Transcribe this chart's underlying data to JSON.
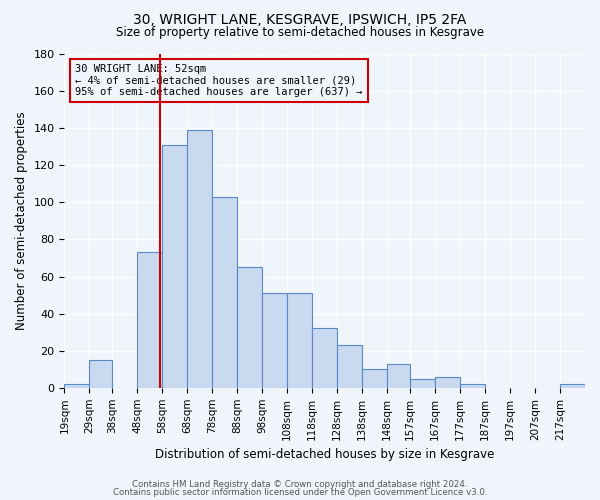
{
  "title": "30, WRIGHT LANE, KESGRAVE, IPSWICH, IP5 2FA",
  "subtitle": "Size of property relative to semi-detached houses in Kesgrave",
  "xlabel": "Distribution of semi-detached houses by size in Kesgrave",
  "ylabel": "Number of semi-detached properties",
  "bin_labels": [
    "19sqm",
    "29sqm",
    "38sqm",
    "48sqm",
    "58sqm",
    "68sqm",
    "78sqm",
    "88sqm",
    "98sqm",
    "108sqm",
    "118sqm",
    "128sqm",
    "138sqm",
    "148sqm",
    "157sqm",
    "167sqm",
    "177sqm",
    "187sqm",
    "197sqm",
    "207sqm",
    "217sqm"
  ],
  "bin_edges": [
    14,
    24,
    33,
    43,
    53,
    63,
    73,
    83,
    93,
    103,
    113,
    123,
    133,
    143,
    152,
    162,
    172,
    182,
    192,
    202,
    212,
    222
  ],
  "counts": [
    2,
    15,
    0,
    73,
    131,
    139,
    103,
    65,
    51,
    51,
    32,
    23,
    10,
    13,
    5,
    6,
    2,
    0,
    0,
    0,
    2
  ],
  "bar_facecolor": "#c9d9f0",
  "bar_edgecolor": "#5a8ac6",
  "property_line_x": 52,
  "property_line_color": "#cc0000",
  "annotation_title": "30 WRIGHT LANE: 52sqm",
  "annotation_line1": "← 4% of semi-detached houses are smaller (29)",
  "annotation_line2": "95% of semi-detached houses are larger (637) →",
  "annotation_box_edgecolor": "#cc0000",
  "ylim": [
    0,
    180
  ],
  "footer1": "Contains HM Land Registry data © Crown copyright and database right 2024.",
  "footer2": "Contains public sector information licensed under the Open Government Licence v3.0.",
  "background_color": "#f0f4fb",
  "grid_color": "#ffffff"
}
